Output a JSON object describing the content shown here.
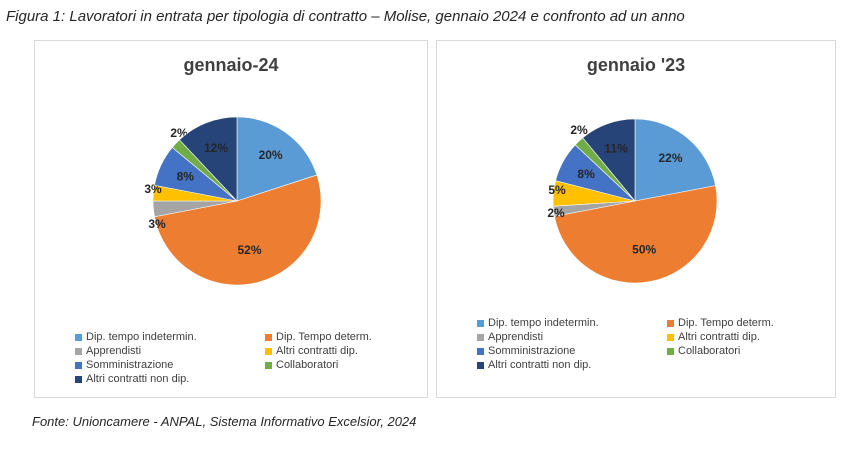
{
  "figure_title": "Figura 1: Lavoratori in entrata per tipologia di contratto – Molise, gennaio 2024 e confronto ad un anno",
  "source": "Fonte: Unioncamere - ANPAL, Sistema Informativo Excelsior, 2024",
  "chart_data": [
    {
      "type": "pie",
      "title": "gennaio-24",
      "categories": [
        "Dip. tempo indetermin.",
        "Dip. Tempo determ.",
        "Apprendisti",
        "Altri contratti dip.",
        "Somministrazione",
        "Collaboratori",
        "Altri contratti non dip."
      ],
      "values": [
        20,
        52,
        3,
        3,
        8,
        2,
        12
      ],
      "labels": [
        "20%",
        "52%",
        "3%",
        "3%",
        "8%",
        "2%",
        "12%"
      ],
      "colors": [
        "#5b9bd5",
        "#ed7d31",
        "#a5a5a5",
        "#ffc000",
        "#4472c4",
        "#70ad47",
        "#264478"
      ],
      "legend_position": "bottom"
    },
    {
      "type": "pie",
      "title": "gennaio '23",
      "categories": [
        "Dip. tempo indetermin.",
        "Dip. Tempo determ.",
        "Apprendisti",
        "Altri contratti dip.",
        "Somministrazione",
        "Collaboratori",
        "Altri contratti non dip."
      ],
      "values": [
        22,
        50,
        2,
        5,
        8,
        2,
        11
      ],
      "labels": [
        "22%",
        "50%",
        "2%",
        "5%",
        "8%",
        "2%",
        "11%"
      ],
      "colors": [
        "#5b9bd5",
        "#ed7d31",
        "#a5a5a5",
        "#ffc000",
        "#4472c4",
        "#70ad47",
        "#264478"
      ],
      "legend_position": "bottom"
    }
  ]
}
